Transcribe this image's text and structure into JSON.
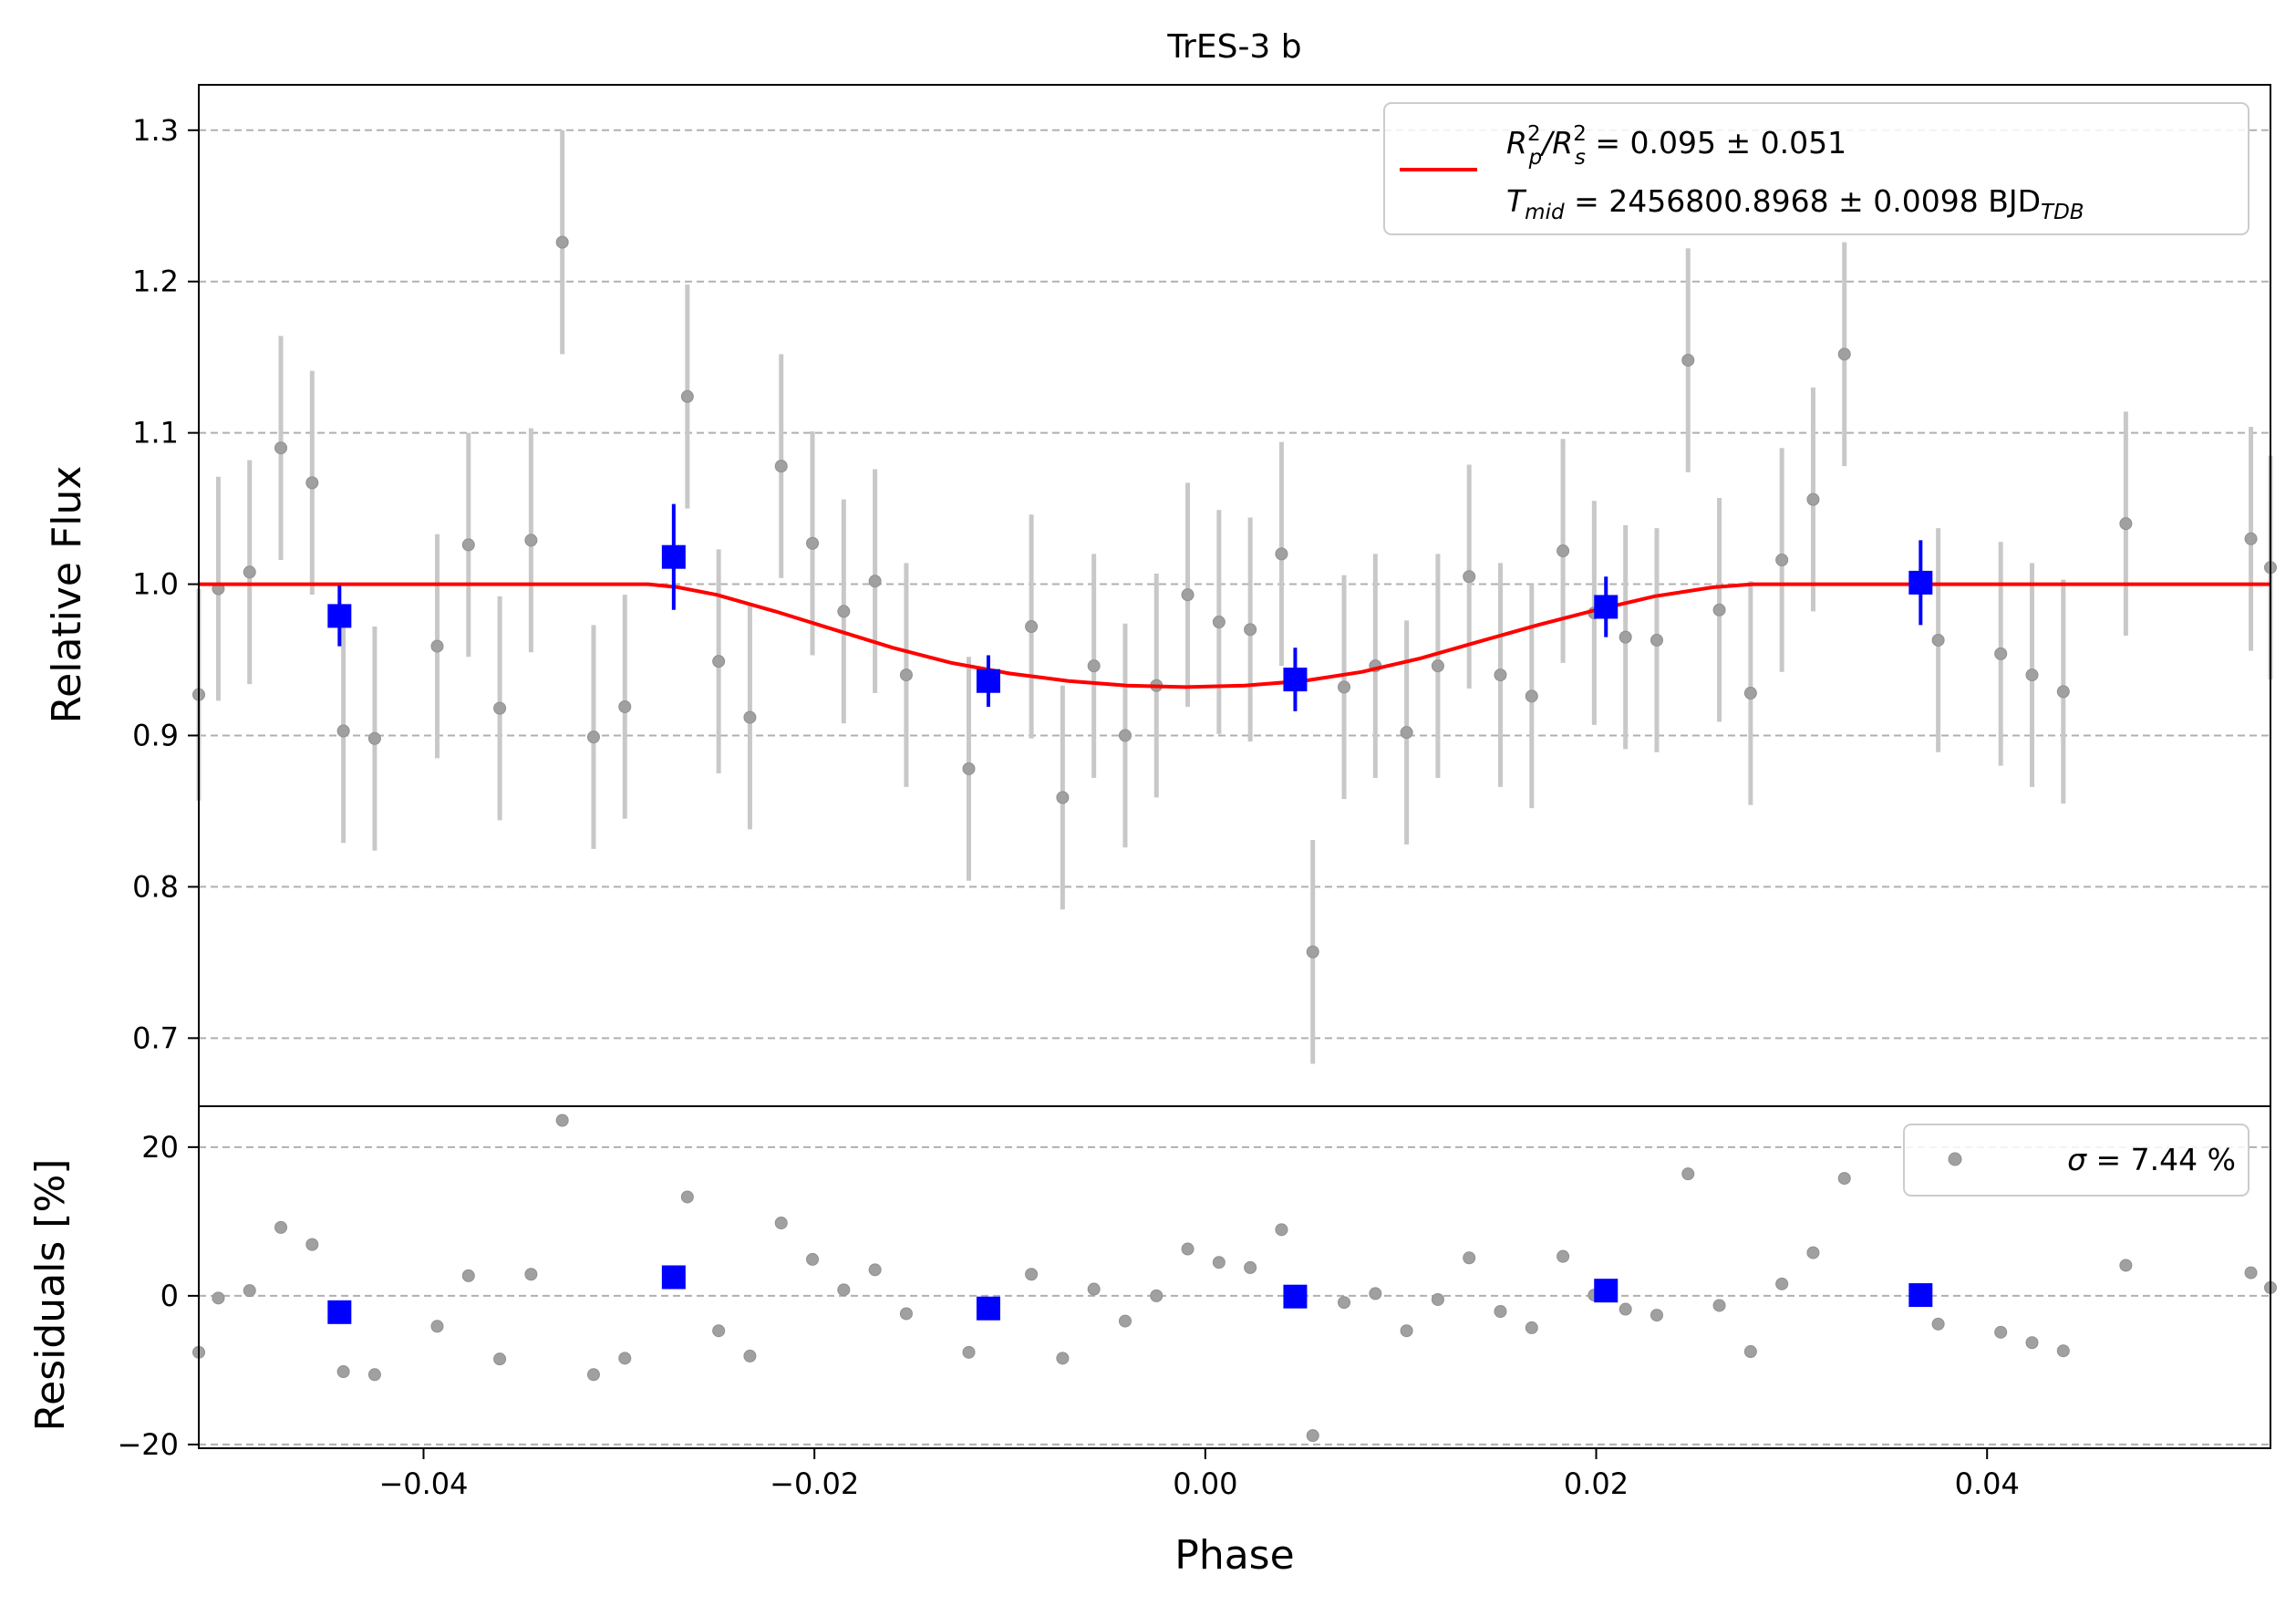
{
  "chart_data": {
    "type": "scatter",
    "title": "TrES-3 b",
    "xlabel": "Phase",
    "xlim": [
      -0.0515,
      0.0545
    ],
    "x_ticks": [
      "−0.04",
      "−0.02",
      "0.00",
      "0.02",
      "0.04"
    ],
    "x_tick_values": [
      -0.04,
      -0.02,
      0.0,
      0.02,
      0.04
    ],
    "top_panel": {
      "ylabel": "Relative Flux",
      "ylim": [
        0.655,
        1.33
      ],
      "y_ticks": [
        "0.7",
        "0.8",
        "0.9",
        "1.0",
        "1.1",
        "1.2",
        "1.3"
      ],
      "y_tick_values": [
        0.7,
        0.8,
        0.9,
        1.0,
        1.1,
        1.2,
        1.3
      ],
      "grid": "horizontal dashed",
      "legend": {
        "placement": "top-right",
        "line1_base": "R",
        "line1_sup1": "2",
        "line1_sub1": "p",
        "line1_mid": "/R",
        "line1_sup2": "2",
        "line1_sub2": "s",
        "line1_value": " = 0.095 ± 0.051",
        "line2_base": "T",
        "line2_sub": "mid",
        "line2_value": " = 2456800.8968 ± 0.0098 BJD",
        "line2_unit_sub": "TDB"
      },
      "colors": {
        "data": "#a0a0a0",
        "errorbar": "#c8c8c8",
        "binned": "#0000ff",
        "model": "#ff0000"
      },
      "data_points": [
        {
          "x": -0.0515,
          "y": 0.927,
          "err": 0.07
        },
        {
          "x": -0.0505,
          "y": 0.997,
          "err": 0.074
        },
        {
          "x": -0.0489,
          "y": 1.008,
          "err": 0.074
        },
        {
          "x": -0.0473,
          "y": 1.09,
          "err": 0.074
        },
        {
          "x": -0.0457,
          "y": 1.067,
          "err": 0.074
        },
        {
          "x": -0.0441,
          "y": 0.903,
          "err": 0.074
        },
        {
          "x": -0.0425,
          "y": 0.898,
          "err": 0.074
        },
        {
          "x": -0.0393,
          "y": 0.959,
          "err": 0.074
        },
        {
          "x": -0.0377,
          "y": 1.026,
          "err": 0.074
        },
        {
          "x": -0.0361,
          "y": 0.918,
          "err": 0.074
        },
        {
          "x": -0.0345,
          "y": 1.029,
          "err": 0.074
        },
        {
          "x": -0.0329,
          "y": 1.226,
          "err": 0.074
        },
        {
          "x": -0.0313,
          "y": 0.899,
          "err": 0.074
        },
        {
          "x": -0.0297,
          "y": 0.919,
          "err": 0.074
        },
        {
          "x": -0.0265,
          "y": 1.124,
          "err": 0.074
        },
        {
          "x": -0.0249,
          "y": 0.949,
          "err": 0.074
        },
        {
          "x": -0.0233,
          "y": 0.912,
          "err": 0.074
        },
        {
          "x": -0.0217,
          "y": 1.078,
          "err": 0.074
        },
        {
          "x": -0.0201,
          "y": 1.027,
          "err": 0.074
        },
        {
          "x": -0.0185,
          "y": 0.982,
          "err": 0.074
        },
        {
          "x": -0.0169,
          "y": 1.002,
          "err": 0.074
        },
        {
          "x": -0.0153,
          "y": 0.94,
          "err": 0.074
        },
        {
          "x": -0.0121,
          "y": 0.878,
          "err": 0.074
        },
        {
          "x": -0.0089,
          "y": 0.972,
          "err": 0.074
        },
        {
          "x": -0.0073,
          "y": 0.859,
          "err": 0.074
        },
        {
          "x": -0.0057,
          "y": 0.946,
          "err": 0.074
        },
        {
          "x": -0.0041,
          "y": 0.9,
          "err": 0.074
        },
        {
          "x": -0.0025,
          "y": 0.933,
          "err": 0.074
        },
        {
          "x": -0.0009,
          "y": 0.993,
          "err": 0.074
        },
        {
          "x": 0.0007,
          "y": 0.975,
          "err": 0.074
        },
        {
          "x": 0.0023,
          "y": 0.97,
          "err": 0.074
        },
        {
          "x": 0.0039,
          "y": 1.02,
          "err": 0.074
        },
        {
          "x": 0.0055,
          "y": 0.757,
          "err": 0.074
        },
        {
          "x": 0.0071,
          "y": 0.932,
          "err": 0.074
        },
        {
          "x": 0.0087,
          "y": 0.946,
          "err": 0.074
        },
        {
          "x": 0.0103,
          "y": 0.902,
          "err": 0.074
        },
        {
          "x": 0.0119,
          "y": 0.946,
          "err": 0.074
        },
        {
          "x": 0.0135,
          "y": 1.005,
          "err": 0.074
        },
        {
          "x": 0.0151,
          "y": 0.94,
          "err": 0.074
        },
        {
          "x": 0.0167,
          "y": 0.926,
          "err": 0.074
        },
        {
          "x": 0.0183,
          "y": 1.022,
          "err": 0.074
        },
        {
          "x": 0.0199,
          "y": 0.981,
          "err": 0.074
        },
        {
          "x": 0.0215,
          "y": 0.965,
          "err": 0.074
        },
        {
          "x": 0.0231,
          "y": 0.963,
          "err": 0.074
        },
        {
          "x": 0.0247,
          "y": 1.148,
          "err": 0.074
        },
        {
          "x": 0.0263,
          "y": 0.983,
          "err": 0.074
        },
        {
          "x": 0.0279,
          "y": 0.928,
          "err": 0.074
        },
        {
          "x": 0.0295,
          "y": 1.016,
          "err": 0.074
        },
        {
          "x": 0.0311,
          "y": 1.056,
          "err": 0.074
        },
        {
          "x": 0.0327,
          "y": 1.152,
          "err": 0.074
        },
        {
          "x": 0.0375,
          "y": 0.963,
          "err": 0.074
        },
        {
          "x": 0.0407,
          "y": 0.954,
          "err": 0.074
        },
        {
          "x": 0.0423,
          "y": 0.94,
          "err": 0.074
        },
        {
          "x": 0.0439,
          "y": 0.929,
          "err": 0.074
        },
        {
          "x": 0.0471,
          "y": 1.04,
          "err": 0.074
        },
        {
          "x": 0.0535,
          "y": 1.03,
          "err": 0.074
        },
        {
          "x": 0.0545,
          "y": 1.011,
          "err": 0.074
        }
      ],
      "binned_points": [
        {
          "x": -0.0443,
          "y": 0.979,
          "err": 0.02
        },
        {
          "x": -0.0272,
          "y": 1.018,
          "err": 0.035
        },
        {
          "x": -0.0111,
          "y": 0.936,
          "err": 0.017
        },
        {
          "x": 0.0046,
          "y": 0.937,
          "err": 0.021
        },
        {
          "x": 0.0205,
          "y": 0.985,
          "err": 0.02
        },
        {
          "x": 0.0366,
          "y": 1.001,
          "err": 0.028
        }
      ],
      "model": {
        "x": [
          -0.0515,
          -0.0285,
          -0.027,
          -0.025,
          -0.022,
          -0.019,
          -0.016,
          -0.013,
          -0.01,
          -0.007,
          -0.004,
          -0.001,
          0.002,
          0.005,
          0.008,
          0.011,
          0.014,
          0.017,
          0.02,
          0.023,
          0.026,
          0.028,
          0.0295,
          0.0545
        ],
        "y": [
          1.0,
          1.0,
          0.998,
          0.993,
          0.982,
          0.97,
          0.958,
          0.948,
          0.941,
          0.936,
          0.933,
          0.932,
          0.933,
          0.936,
          0.942,
          0.951,
          0.962,
          0.973,
          0.983,
          0.992,
          0.998,
          1.0,
          1.0,
          1.0
        ]
      }
    },
    "bottom_panel": {
      "ylabel": "Residuals [%]",
      "ylim": [
        -20.5,
        25.5
      ],
      "y_ticks": [
        "−20",
        "0",
        "20"
      ],
      "y_tick_values": [
        -20,
        0,
        20
      ],
      "grid": "horizontal dashed",
      "legend": {
        "placement": "top-right",
        "sigma_symbol": "σ",
        "text": " = 7.44 %"
      },
      "residual_points": [
        {
          "x": -0.0515,
          "y": -7.6
        },
        {
          "x": -0.0505,
          "y": -0.3
        },
        {
          "x": -0.0489,
          "y": 0.7
        },
        {
          "x": -0.0473,
          "y": 9.2
        },
        {
          "x": -0.0457,
          "y": 6.9
        },
        {
          "x": -0.0441,
          "y": -10.2
        },
        {
          "x": -0.0425,
          "y": -10.6
        },
        {
          "x": -0.0393,
          "y": -4.1
        },
        {
          "x": -0.0377,
          "y": 2.7
        },
        {
          "x": -0.0361,
          "y": -8.5
        },
        {
          "x": -0.0345,
          "y": 2.9
        },
        {
          "x": -0.0329,
          "y": 23.6
        },
        {
          "x": -0.0313,
          "y": -10.6
        },
        {
          "x": -0.0297,
          "y": -8.4
        },
        {
          "x": -0.0265,
          "y": 13.3
        },
        {
          "x": -0.0249,
          "y": -4.7
        },
        {
          "x": -0.0233,
          "y": -8.1
        },
        {
          "x": -0.0217,
          "y": 9.8
        },
        {
          "x": -0.0201,
          "y": 4.9
        },
        {
          "x": -0.0185,
          "y": 0.8
        },
        {
          "x": -0.0169,
          "y": 3.5
        },
        {
          "x": -0.0153,
          "y": -2.4
        },
        {
          "x": -0.0121,
          "y": -7.6
        },
        {
          "x": -0.0089,
          "y": 2.9
        },
        {
          "x": -0.0073,
          "y": -8.4
        },
        {
          "x": -0.0057,
          "y": 0.9
        },
        {
          "x": -0.0041,
          "y": -3.4
        },
        {
          "x": -0.0025,
          "y": 0.0
        },
        {
          "x": -0.0009,
          "y": 6.3
        },
        {
          "x": 0.0007,
          "y": 4.5
        },
        {
          "x": 0.0023,
          "y": 3.8
        },
        {
          "x": 0.0039,
          "y": 8.9
        },
        {
          "x": 0.0055,
          "y": -18.8
        },
        {
          "x": 0.0071,
          "y": -0.9
        },
        {
          "x": 0.0087,
          "y": 0.3
        },
        {
          "x": 0.0103,
          "y": -4.7
        },
        {
          "x": 0.0119,
          "y": -0.5
        },
        {
          "x": 0.0135,
          "y": 5.1
        },
        {
          "x": 0.0151,
          "y": -2.1
        },
        {
          "x": 0.0167,
          "y": -4.3
        },
        {
          "x": 0.0183,
          "y": 5.3
        },
        {
          "x": 0.0199,
          "y": 0.1
        },
        {
          "x": 0.0215,
          "y": -1.8
        },
        {
          "x": 0.0231,
          "y": -2.6
        },
        {
          "x": 0.0247,
          "y": 16.4
        },
        {
          "x": 0.0263,
          "y": -1.3
        },
        {
          "x": 0.0279,
          "y": -7.5
        },
        {
          "x": 0.0295,
          "y": 1.6
        },
        {
          "x": 0.0311,
          "y": 5.8
        },
        {
          "x": 0.0327,
          "y": 15.8
        },
        {
          "x": 0.0375,
          "y": -3.8
        },
        {
          "x": 0.0407,
          "y": -4.9
        },
        {
          "x": 0.0423,
          "y": -6.3
        },
        {
          "x": 0.0439,
          "y": -7.4
        },
        {
          "x": 0.0471,
          "y": 4.1
        },
        {
          "x": 0.0535,
          "y": 3.1
        },
        {
          "x": 0.0545,
          "y": 1.1
        }
      ],
      "binned_residuals": [
        {
          "x": -0.0443,
          "y": -2.2
        },
        {
          "x": -0.0272,
          "y": 2.5
        },
        {
          "x": -0.0111,
          "y": -1.7
        },
        {
          "x": 0.0046,
          "y": -0.1
        },
        {
          "x": 0.0205,
          "y": 0.7
        },
        {
          "x": 0.0366,
          "y": 0.1
        }
      ]
    }
  }
}
